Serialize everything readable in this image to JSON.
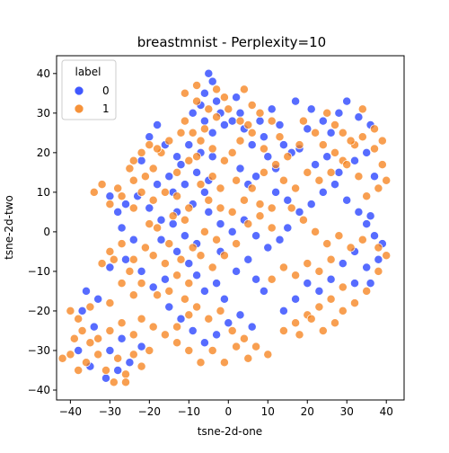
{
  "chart_data": {
    "type": "scatter",
    "title": "breastmnist - Perplexity=10",
    "xlabel": "tsne-2d-one",
    "ylabel": "tsne-2d-two",
    "xlim": [
      -43.5,
      44.5
    ],
    "ylim": [
      -42.5,
      44.5
    ],
    "xticks": [
      -40,
      -30,
      -20,
      -10,
      0,
      10,
      20,
      30,
      40
    ],
    "yticks": [
      -40,
      -30,
      -20,
      -10,
      0,
      10,
      20,
      30,
      40
    ],
    "grid": false,
    "legend": {
      "title": "label",
      "position": "upper-left"
    },
    "series": [
      {
        "name": "0",
        "color": "#1f3bff",
        "points": [
          [
            -5,
            40
          ],
          [
            -4,
            38
          ],
          [
            -6,
            35
          ],
          [
            -3,
            33
          ],
          [
            -7,
            32
          ],
          [
            -2,
            30
          ],
          [
            2,
            34
          ],
          [
            3,
            30
          ],
          [
            -1,
            27
          ],
          [
            -4,
            25
          ],
          [
            1,
            28
          ],
          [
            4,
            26
          ],
          [
            -9,
            30
          ],
          [
            -6,
            28
          ],
          [
            -10,
            22
          ],
          [
            -7,
            20
          ],
          [
            -4,
            19
          ],
          [
            -12,
            17
          ],
          [
            -8,
            15
          ],
          [
            -5,
            13
          ],
          [
            -11,
            12
          ],
          [
            -14,
            10
          ],
          [
            -18,
            27
          ],
          [
            -20,
            24
          ],
          [
            -16,
            22
          ],
          [
            -13,
            19
          ],
          [
            -22,
            18
          ],
          [
            -15,
            14
          ],
          [
            -18,
            12
          ],
          [
            -6,
            10
          ],
          [
            -9,
            7
          ],
          [
            -13,
            5
          ],
          [
            -17,
            3
          ],
          [
            -20,
            6
          ],
          [
            -23,
            9
          ],
          [
            -26,
            7
          ],
          [
            -30,
            9
          ],
          [
            -28,
            5
          ],
          [
            8,
            28
          ],
          [
            11,
            31
          ],
          [
            13,
            27
          ],
          [
            9,
            24
          ],
          [
            6,
            22
          ],
          [
            10,
            19
          ],
          [
            12,
            16
          ],
          [
            7,
            14
          ],
          [
            5,
            12
          ],
          [
            3,
            16
          ],
          [
            14,
            22
          ],
          [
            16,
            20
          ],
          [
            17,
            33
          ],
          [
            21,
            31
          ],
          [
            24,
            28
          ],
          [
            26,
            25
          ],
          [
            28,
            30
          ],
          [
            30,
            33
          ],
          [
            33,
            29
          ],
          [
            36,
            27
          ],
          [
            20,
            26
          ],
          [
            18,
            21
          ],
          [
            22,
            17
          ],
          [
            25,
            19
          ],
          [
            28,
            15
          ],
          [
            32,
            18
          ],
          [
            35,
            20
          ],
          [
            37,
            14
          ],
          [
            12,
            10
          ],
          [
            15,
            8
          ],
          [
            18,
            5
          ],
          [
            21,
            7
          ],
          [
            24,
            10
          ],
          [
            27,
            12
          ],
          [
            30,
            8
          ],
          [
            33,
            5
          ],
          [
            35,
            2
          ],
          [
            37,
            -1
          ],
          [
            36,
            4
          ],
          [
            39,
            -3
          ],
          [
            32,
            -5
          ],
          [
            29,
            -8
          ],
          [
            26,
            -12
          ],
          [
            23,
            -15
          ],
          [
            20,
            -13
          ],
          [
            17,
            -17
          ],
          [
            14,
            -20
          ],
          [
            32,
            -13
          ],
          [
            35,
            -9
          ],
          [
            38,
            -7
          ],
          [
            36,
            -13
          ],
          [
            -30,
            -9
          ],
          [
            -26,
            -7
          ],
          [
            -22,
            -10
          ],
          [
            -19,
            -14
          ],
          [
            -16,
            -12
          ],
          [
            -13,
            -5
          ],
          [
            -10,
            -8
          ],
          [
            -8,
            -11
          ],
          [
            -6,
            -15
          ],
          [
            -3,
            -13
          ],
          [
            -1,
            -17
          ],
          [
            2,
            -10
          ],
          [
            5,
            -7
          ],
          [
            7,
            -12
          ],
          [
            9,
            -15
          ],
          [
            -15,
            -19
          ],
          [
            -12,
            -22
          ],
          [
            -9,
            -25
          ],
          [
            -6,
            -28
          ],
          [
            -3,
            -26
          ],
          [
            0,
            -23
          ],
          [
            3,
            -21
          ],
          [
            6,
            -24
          ],
          [
            -33,
            -17
          ],
          [
            -36,
            -15
          ],
          [
            -37,
            -20
          ],
          [
            -34,
            -24
          ],
          [
            -30,
            -30
          ],
          [
            -27,
            -27
          ],
          [
            -25,
            -33
          ],
          [
            -22,
            -29
          ],
          [
            -28,
            -35
          ],
          [
            -31,
            -37
          ],
          [
            -35,
            -34
          ],
          [
            -38,
            -30
          ],
          [
            -8,
            -3
          ],
          [
            -11,
            -1
          ],
          [
            -14,
            2
          ],
          [
            -17,
            -2
          ],
          [
            -5,
            5
          ],
          [
            -2,
            2
          ],
          [
            1,
            0
          ],
          [
            4,
            3
          ],
          [
            7,
            -1
          ],
          [
            10,
            -4
          ],
          [
            13,
            -2
          ],
          [
            15,
            1
          ],
          [
            -2,
            -5
          ],
          [
            -24,
            -2
          ],
          [
            -27,
            1
          ]
        ]
      },
      {
        "name": "1",
        "color": "#f57f17",
        "points": [
          [
            -8,
            37
          ],
          [
            -3,
            36
          ],
          [
            -11,
            35
          ],
          [
            -1,
            34
          ],
          [
            4,
            36
          ],
          [
            -8,
            33
          ],
          [
            -5,
            31
          ],
          [
            -11,
            28
          ],
          [
            0,
            31
          ],
          [
            3,
            28
          ],
          [
            6,
            32
          ],
          [
            -3,
            29
          ],
          [
            -6,
            26
          ],
          [
            -9,
            25
          ],
          [
            5,
            27
          ],
          [
            8,
            30
          ],
          [
            11,
            28
          ],
          [
            -22,
            20
          ],
          [
            -24,
            18
          ],
          [
            -19,
            16
          ],
          [
            -17,
            20
          ],
          [
            -21,
            14
          ],
          [
            -25,
            16
          ],
          [
            -13,
            15
          ],
          [
            -10,
            18
          ],
          [
            -7,
            23
          ],
          [
            -4,
            21
          ],
          [
            -1,
            18
          ],
          [
            -8,
            19
          ],
          [
            -15,
            23
          ],
          [
            -18,
            21
          ],
          [
            -12,
            25
          ],
          [
            -20,
            22
          ],
          [
            -24,
            13
          ],
          [
            -22,
            10
          ],
          [
            -28,
            11
          ],
          [
            -32,
            12
          ],
          [
            -34,
            10
          ],
          [
            -30,
            7
          ],
          [
            -27,
            9
          ],
          [
            -24,
            6
          ],
          [
            -19,
            8
          ],
          [
            -16,
            10
          ],
          [
            -13,
            9
          ],
          [
            -10,
            6
          ],
          [
            -7,
            12
          ],
          [
            -4,
            14
          ],
          [
            -2,
            11
          ],
          [
            -11,
            3
          ],
          [
            -14,
            4
          ],
          [
            -20,
            2
          ],
          [
            1,
            20
          ],
          [
            3,
            23
          ],
          [
            6,
            25
          ],
          [
            9,
            21
          ],
          [
            13,
            24
          ],
          [
            15,
            19
          ],
          [
            18,
            22
          ],
          [
            12,
            17
          ],
          [
            9,
            15
          ],
          [
            6,
            11
          ],
          [
            4,
            8
          ],
          [
            8,
            7
          ],
          [
            11,
            6
          ],
          [
            2,
            13
          ],
          [
            14,
            13
          ],
          [
            17,
            11
          ],
          [
            20,
            15
          ],
          [
            23,
            13
          ],
          [
            26,
            15
          ],
          [
            29,
            18
          ],
          [
            32,
            22
          ],
          [
            34,
            24
          ],
          [
            37,
            21
          ],
          [
            39,
            17
          ],
          [
            40,
            13
          ],
          [
            38,
            11
          ],
          [
            35,
            9
          ],
          [
            19,
            28
          ],
          [
            22,
            25
          ],
          [
            25,
            30
          ],
          [
            27,
            27
          ],
          [
            29,
            25
          ],
          [
            31,
            23
          ],
          [
            34,
            31
          ],
          [
            37,
            26
          ],
          [
            39,
            23
          ],
          [
            24,
            22
          ],
          [
            27,
            20
          ],
          [
            30,
            17
          ],
          [
            33,
            14
          ],
          [
            16,
            6
          ],
          [
            19,
            3
          ],
          [
            22,
            0
          ],
          [
            25,
            -3
          ],
          [
            28,
            -1
          ],
          [
            31,
            -4
          ],
          [
            34,
            -2
          ],
          [
            38,
            -4
          ],
          [
            40,
            -6
          ],
          [
            26,
            -7
          ],
          [
            23,
            -10
          ],
          [
            20,
            -8
          ],
          [
            17,
            -11
          ],
          [
            14,
            -9
          ],
          [
            11,
            -12
          ],
          [
            29,
            -14
          ],
          [
            26,
            -17
          ],
          [
            23,
            -19
          ],
          [
            20,
            -21
          ],
          [
            17,
            -23
          ],
          [
            14,
            -25
          ],
          [
            29,
            -20
          ],
          [
            32,
            -18
          ],
          [
            35,
            -15
          ],
          [
            38,
            -10
          ],
          [
            27,
            -23
          ],
          [
            24,
            -25
          ],
          [
            21,
            -22
          ],
          [
            18,
            -26
          ],
          [
            -29,
            -7
          ],
          [
            -32,
            -8
          ],
          [
            -25,
            -10
          ],
          [
            -22,
            -13
          ],
          [
            -19,
            -6
          ],
          [
            -16,
            -8
          ],
          [
            -13,
            -11
          ],
          [
            -10,
            -13
          ],
          [
            -7,
            -6
          ],
          [
            -4,
            -9
          ],
          [
            -18,
            -16
          ],
          [
            -15,
            -15
          ],
          [
            -24,
            -16
          ],
          [
            -27,
            -13
          ],
          [
            -30,
            -18
          ],
          [
            -11,
            -17
          ],
          [
            -8,
            -19
          ],
          [
            -5,
            -22
          ],
          [
            -2,
            -20
          ],
          [
            1,
            -25
          ],
          [
            4,
            -27
          ],
          [
            7,
            -29
          ],
          [
            10,
            -31
          ],
          [
            -4,
            -30
          ],
          [
            -1,
            -33
          ],
          [
            2,
            -29
          ],
          [
            5,
            -32
          ],
          [
            -7,
            -33
          ],
          [
            -10,
            -30
          ],
          [
            -13,
            -28
          ],
          [
            -16,
            -26
          ],
          [
            -19,
            -24
          ],
          [
            -22,
            -22
          ],
          [
            -10,
            -21
          ],
          [
            -13,
            -24
          ],
          [
            -35,
            -19
          ],
          [
            -38,
            -22
          ],
          [
            -40,
            -20
          ],
          [
            -37,
            -25
          ],
          [
            -35,
            -28
          ],
          [
            -33,
            -31
          ],
          [
            -36,
            -33
          ],
          [
            -38,
            -35
          ],
          [
            -40,
            -31
          ],
          [
            -42,
            -32
          ],
          [
            -39,
            -27
          ],
          [
            -31,
            -35
          ],
          [
            -28,
            -32
          ],
          [
            -26,
            -36
          ],
          [
            -24,
            -31
          ],
          [
            -22,
            -34
          ],
          [
            -20,
            -30
          ],
          [
            -29,
            -38
          ],
          [
            -26,
            -38
          ],
          [
            -33,
            -27
          ],
          [
            -30,
            -25
          ],
          [
            -27,
            -23
          ],
          [
            -24,
            -26
          ],
          [
            -1,
            -6
          ],
          [
            -3,
            -2
          ],
          [
            -6,
            0
          ],
          [
            -9,
            -4
          ],
          [
            -12,
            -7
          ],
          [
            -15,
            -3
          ],
          [
            -18,
            1
          ],
          [
            -21,
            -4
          ],
          [
            -24,
            -7
          ],
          [
            -27,
            -3
          ],
          [
            -30,
            -5
          ],
          [
            2,
            -3
          ],
          [
            5,
            2
          ],
          [
            8,
            4
          ],
          [
            11,
            1
          ],
          [
            1,
            5
          ],
          [
            -5,
            8
          ],
          [
            -2,
            6
          ]
        ]
      }
    ]
  }
}
